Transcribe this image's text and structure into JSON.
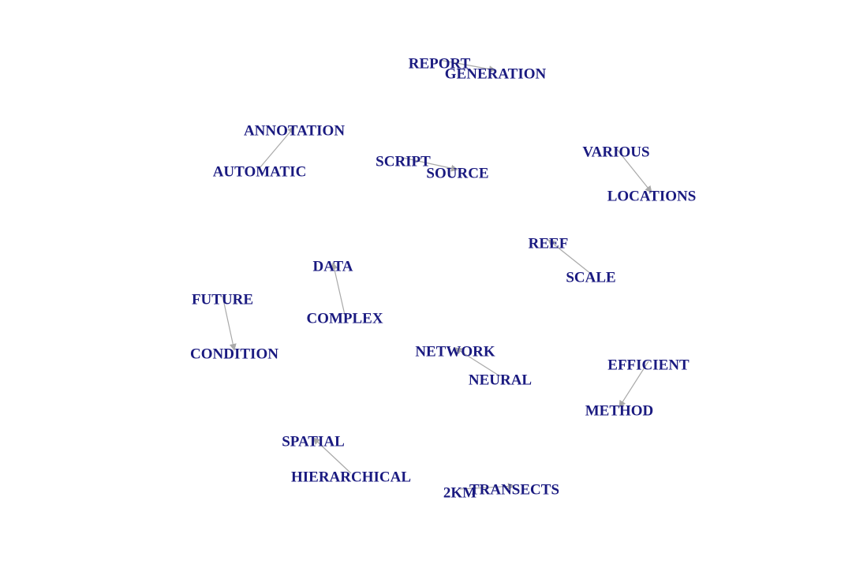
{
  "graph": {
    "colors": {
      "label": "#1a1a80",
      "edge": "#a9a9a9"
    },
    "nodes": [
      {
        "id": "report",
        "label": "REPORT"
      },
      {
        "id": "generation",
        "label": "GENERATION"
      },
      {
        "id": "annotation",
        "label": "ANNOTATION"
      },
      {
        "id": "automatic",
        "label": "AUTOMATIC"
      },
      {
        "id": "script",
        "label": "SCRIPT"
      },
      {
        "id": "source",
        "label": "SOURCE"
      },
      {
        "id": "various",
        "label": "VARIOUS"
      },
      {
        "id": "locations",
        "label": "LOCATIONS"
      },
      {
        "id": "reef",
        "label": "REEF"
      },
      {
        "id": "scale",
        "label": "SCALE"
      },
      {
        "id": "data",
        "label": "DATA"
      },
      {
        "id": "complex",
        "label": "COMPLEX"
      },
      {
        "id": "future",
        "label": "FUTURE"
      },
      {
        "id": "condition",
        "label": "CONDITION"
      },
      {
        "id": "network",
        "label": "NETWORK"
      },
      {
        "id": "neural",
        "label": "NEURAL"
      },
      {
        "id": "efficient",
        "label": "EFFICIENT"
      },
      {
        "id": "method",
        "label": "METHOD"
      },
      {
        "id": "spatial",
        "label": "SPATIAL"
      },
      {
        "id": "hierarchical",
        "label": "HIERARCHICAL"
      },
      {
        "id": "2km",
        "label": "2KM"
      },
      {
        "id": "transects",
        "label": "TRANSECTS"
      }
    ],
    "edges": [
      {
        "from": "report",
        "to": "generation"
      },
      {
        "from": "automatic",
        "to": "annotation"
      },
      {
        "from": "script",
        "to": "source"
      },
      {
        "from": "various",
        "to": "locations"
      },
      {
        "from": "scale",
        "to": "reef"
      },
      {
        "from": "complex",
        "to": "data"
      },
      {
        "from": "future",
        "to": "condition"
      },
      {
        "from": "neural",
        "to": "network"
      },
      {
        "from": "efficient",
        "to": "method"
      },
      {
        "from": "hierarchical",
        "to": "spatial"
      },
      {
        "from": "2km",
        "to": "transects"
      }
    ]
  }
}
